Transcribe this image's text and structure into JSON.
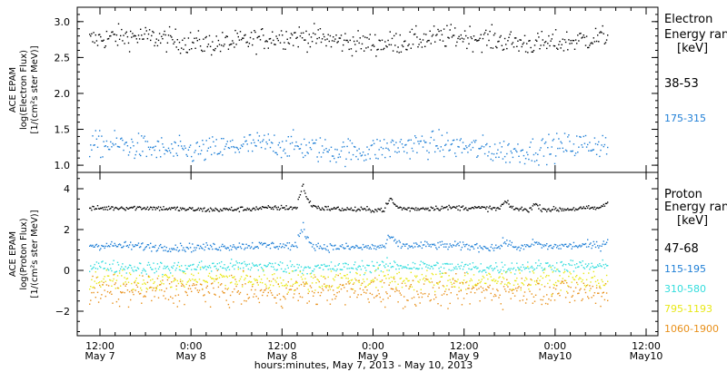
{
  "chart_data": [
    {
      "type": "scatter",
      "panel": "electron",
      "ylabel_lines": [
        "ACE EPAM",
        "log(Electron Flux)",
        "[1/(cm²s ster MeV)]"
      ],
      "yticks": [
        "3.0",
        "2.5",
        "2.0",
        "1.5",
        "1.0"
      ],
      "ylim": [
        0.9,
        3.2
      ],
      "legend_title": [
        "Electron",
        "Energy ranges",
        "[keV]"
      ],
      "series": [
        {
          "name": "38-53",
          "color": "#000000",
          "baseline": 2.75,
          "spread": 0.08
        },
        {
          "name": "175-315",
          "color": "#1f7fd6",
          "baseline": 1.25,
          "spread": 0.09
        }
      ]
    },
    {
      "type": "scatter",
      "panel": "proton",
      "ylabel_lines": [
        "ACE EPAM",
        "log(Proton Flux)",
        "[1/(cm²s ster MeV)]"
      ],
      "yticks": [
        "4",
        "2",
        "0",
        "−2"
      ],
      "ylim": [
        -3.2,
        4.8
      ],
      "legend_title": [
        "Proton",
        "Energy ranges",
        "[keV]"
      ],
      "series": [
        {
          "name": "47-68",
          "color": "#000000",
          "baseline": 3.05,
          "spread": 0.06
        },
        {
          "name": "115-195",
          "color": "#1f7fd6",
          "baseline": 1.2,
          "spread": 0.1
        },
        {
          "name": "310-580",
          "color": "#33dddd",
          "baseline": 0.2,
          "spread": 0.15
        },
        {
          "name": "795-1193",
          "color": "#e8e817",
          "baseline": -0.45,
          "spread": 0.25
        },
        {
          "name": "1060-1900",
          "color": "#e8901a",
          "baseline": -1.0,
          "spread": 0.35
        }
      ],
      "events": [
        {
          "t": 0.412,
          "peak": 1.2
        },
        {
          "t": 0.581,
          "peak": 0.6
        },
        {
          "t": 0.803,
          "peak": 0.4
        },
        {
          "t": 0.86,
          "peak": 0.3
        },
        {
          "t": 1.0,
          "peak": 0.3
        }
      ]
    }
  ],
  "xaxis": {
    "ticks": [
      {
        "time": "12:00",
        "date": "May 7"
      },
      {
        "time": "0:00",
        "date": "May 8"
      },
      {
        "time": "12:00",
        "date": "May 8"
      },
      {
        "time": "0:00",
        "date": "May 9"
      },
      {
        "time": "12:00",
        "date": "May 9"
      },
      {
        "time": "0:00",
        "date": "May10"
      },
      {
        "time": "12:00",
        "date": "May10"
      }
    ],
    "label": "hours:minutes, May  7, 2013 - May 10, 2013"
  }
}
